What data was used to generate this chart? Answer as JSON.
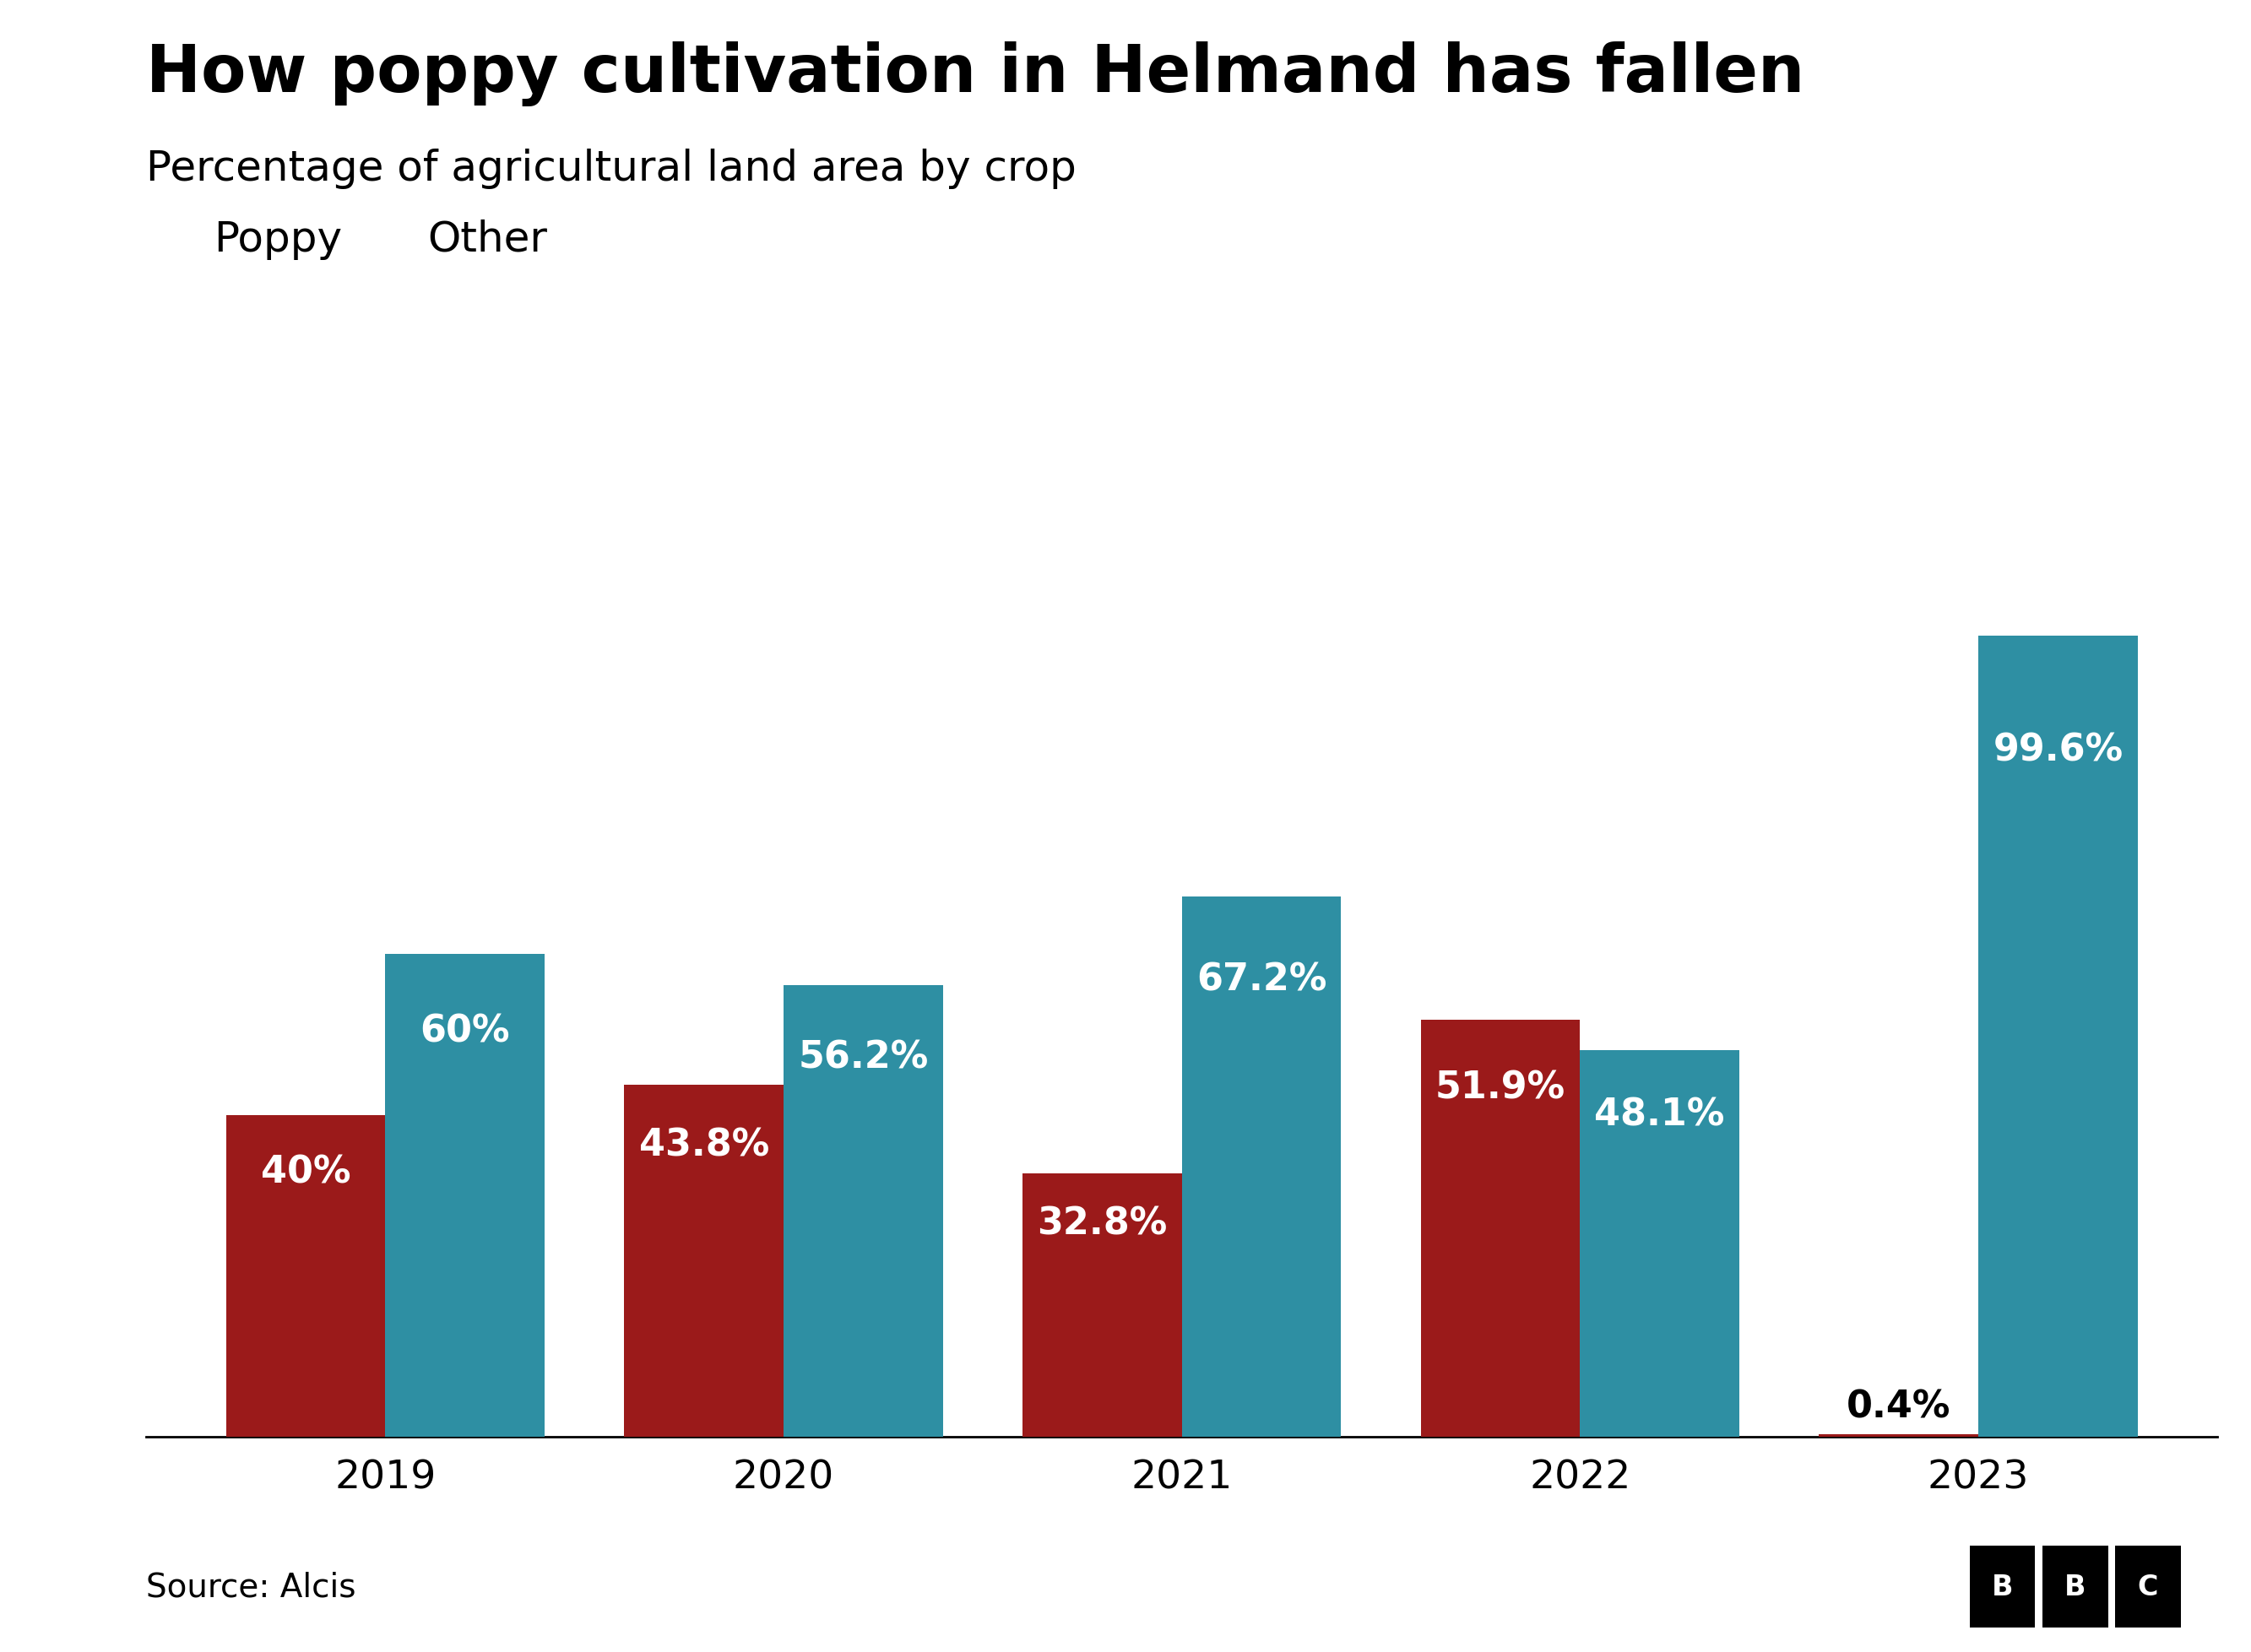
{
  "title": "How poppy cultivation in Helmand has fallen",
  "subtitle": "Percentage of agricultural land area by crop",
  "source": "Source: Alcis",
  "years": [
    "2019",
    "2020",
    "2021",
    "2022",
    "2023"
  ],
  "poppy": [
    40.0,
    43.8,
    32.8,
    51.9,
    0.4
  ],
  "other": [
    60.0,
    56.2,
    67.2,
    48.1,
    99.6
  ],
  "poppy_labels": [
    "40%",
    "43.8%",
    "32.8%",
    "51.9%",
    "0.4%"
  ],
  "other_labels": [
    "60%",
    "56.2%",
    "67.2%",
    "48.1%",
    "99.6%"
  ],
  "poppy_color": "#9B1A1A",
  "other_color": "#2E8FA3",
  "poppy_label": "Poppy",
  "other_label": "Other",
  "title_fontsize": 56,
  "subtitle_fontsize": 36,
  "legend_fontsize": 36,
  "bar_label_fontsize": 32,
  "axis_tick_fontsize": 34,
  "source_fontsize": 28,
  "bar_width": 0.4,
  "ylim": [
    0,
    115
  ],
  "background_color": "#ffffff",
  "text_color": "#000000",
  "bar_label_color_inside": "#ffffff",
  "bar_label_color_outside": "#000000"
}
